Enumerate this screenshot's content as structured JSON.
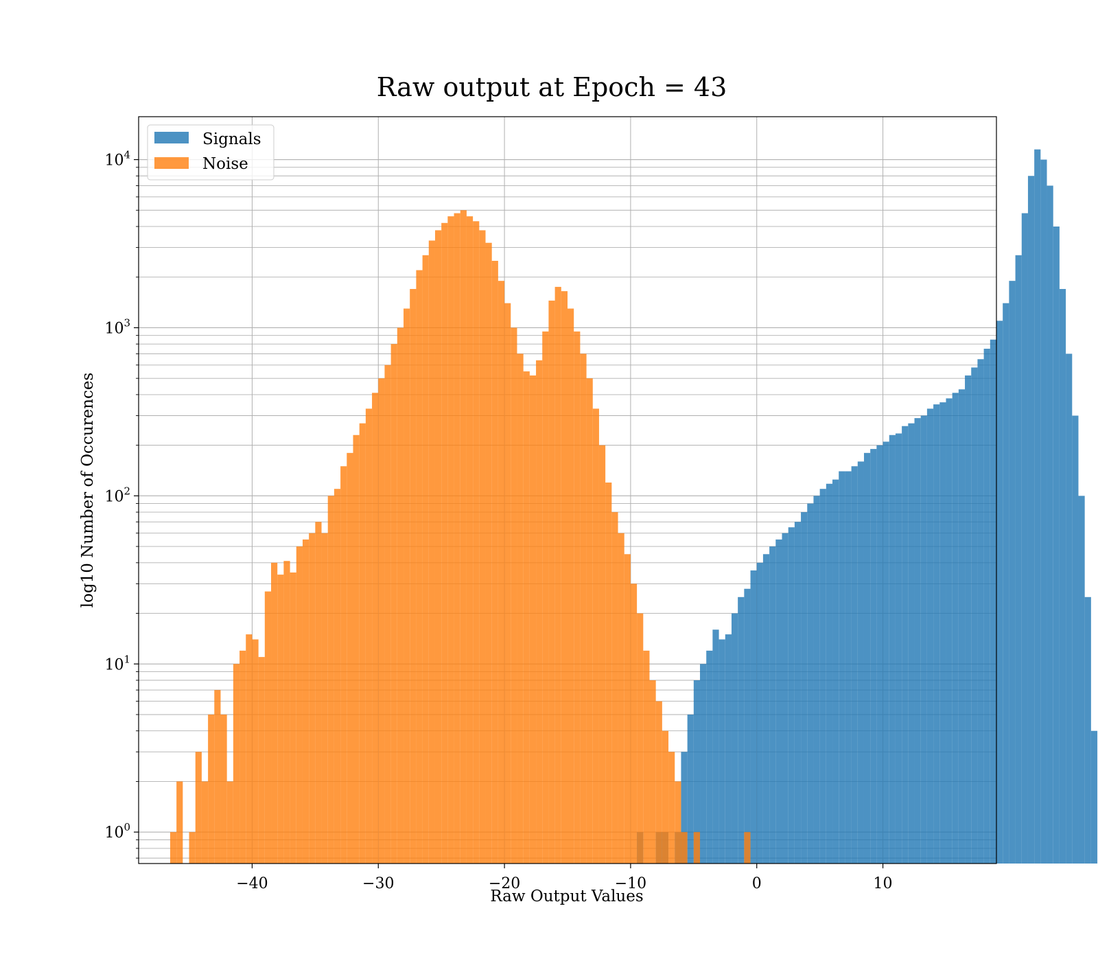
{
  "chart_data": {
    "type": "bar",
    "title": "Raw output at Epoch = 43",
    "xlabel": "Raw Output Values",
    "ylabel": "log10 Number of Occurences",
    "xlim": [
      -49,
      19
    ],
    "ylim": [
      0.65,
      18000
    ],
    "yscale": "log",
    "grid": true,
    "legend_placement": "top-left",
    "x_ticks": [
      -40,
      -30,
      -20,
      -10,
      0,
      10
    ],
    "x_tick_labels": [
      "−40",
      "−30",
      "−20",
      "−10",
      "0",
      "10"
    ],
    "y_ticks": [
      1,
      10,
      100,
      1000,
      10000
    ],
    "y_tick_labels": [
      {
        "base": "10",
        "exp": "0"
      },
      {
        "base": "10",
        "exp": "1"
      },
      {
        "base": "10",
        "exp": "2"
      },
      {
        "base": "10",
        "exp": "3"
      },
      {
        "base": "10",
        "exp": "4"
      }
    ],
    "series": [
      {
        "name": "Signals",
        "color": "#1f77b4",
        "opacity": 0.8,
        "bin_start": -9.5,
        "bin_width": 0.5,
        "values": [
          1,
          0,
          0,
          1,
          1,
          0,
          1,
          3,
          5,
          8,
          10,
          12,
          16,
          14,
          15,
          20,
          25,
          28,
          36,
          40,
          45,
          50,
          55,
          60,
          65,
          70,
          80,
          90,
          100,
          110,
          118,
          125,
          140,
          140,
          150,
          160,
          180,
          190,
          200,
          210,
          230,
          235,
          260,
          270,
          290,
          300,
          330,
          350,
          360,
          380,
          410,
          430,
          520,
          580,
          650,
          750,
          850,
          1100,
          1400,
          1900,
          2700,
          4800,
          8000,
          11500,
          10000,
          7000,
          4000,
          1700,
          700,
          300,
          100,
          25,
          4
        ]
      },
      {
        "name": "Noise",
        "color": "#ff7f0e",
        "opacity": 0.8,
        "bin_start": -46.5,
        "bin_width": 0.5,
        "values": [
          1,
          2,
          0,
          1,
          3,
          2,
          5,
          7,
          5,
          2,
          10,
          12,
          15,
          14,
          11,
          27,
          40,
          34,
          41,
          35,
          50,
          55,
          60,
          70,
          60,
          100,
          110,
          150,
          180,
          230,
          270,
          330,
          410,
          500,
          600,
          800,
          1000,
          1300,
          1700,
          2200,
          2700,
          3300,
          3800,
          4200,
          4600,
          4800,
          5000,
          4600,
          4300,
          3800,
          3200,
          2500,
          1900,
          1400,
          1000,
          700,
          550,
          520,
          640,
          950,
          1450,
          1750,
          1650,
          1300,
          950,
          700,
          500,
          330,
          200,
          120,
          80,
          60,
          45,
          30,
          20,
          12,
          8,
          6,
          4,
          3,
          2,
          1,
          0,
          1,
          0,
          0,
          0,
          0,
          0,
          0,
          0,
          1
        ]
      }
    ]
  }
}
